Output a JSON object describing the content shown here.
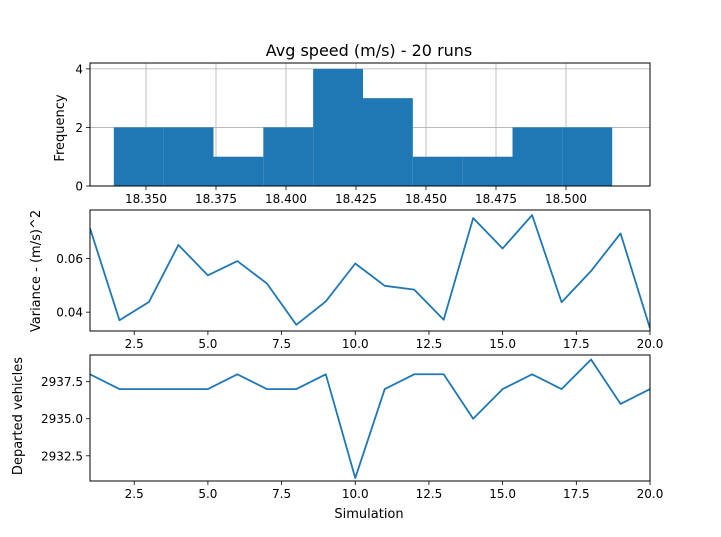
{
  "colors": {
    "series": "#1f77b4",
    "grid": "#b0b0b0",
    "axis": "#000000"
  },
  "chart_data": [
    {
      "type": "bar",
      "title": "Avg speed (m/s) - 20 runs",
      "xlabel": "",
      "ylabel": "Frequency",
      "grid": true,
      "xlim": [
        18.33,
        18.53
      ],
      "ylim": [
        0,
        4.2
      ],
      "bins": [
        {
          "start": 18.3385,
          "end": 18.3563,
          "count": 2
        },
        {
          "start": 18.3563,
          "end": 18.3741,
          "count": 2
        },
        {
          "start": 18.3741,
          "end": 18.3919,
          "count": 1
        },
        {
          "start": 18.3919,
          "end": 18.4097,
          "count": 2
        },
        {
          "start": 18.4097,
          "end": 18.4275,
          "count": 4
        },
        {
          "start": 18.4275,
          "end": 18.4453,
          "count": 3
        },
        {
          "start": 18.4453,
          "end": 18.4631,
          "count": 1
        },
        {
          "start": 18.4631,
          "end": 18.4809,
          "count": 1
        },
        {
          "start": 18.4809,
          "end": 18.4987,
          "count": 2
        },
        {
          "start": 18.4987,
          "end": 18.5165,
          "count": 2
        }
      ],
      "xticks": [
        "18.350",
        "18.375",
        "18.400",
        "18.425",
        "18.450",
        "18.475",
        "18.500"
      ],
      "yticks": [
        "0",
        "2",
        "4"
      ]
    },
    {
      "type": "line",
      "title": "",
      "xlabel": "",
      "ylabel": "Variance - (m/s)^2",
      "grid": false,
      "xlim": [
        1,
        20
      ],
      "ylim": [
        0.033,
        0.078
      ],
      "x": [
        1,
        2,
        3,
        4,
        5,
        6,
        7,
        8,
        9,
        10,
        11,
        12,
        13,
        14,
        15,
        16,
        17,
        18,
        19,
        20
      ],
      "values": [
        0.0712,
        0.037,
        0.0438,
        0.065,
        0.0537,
        0.059,
        0.0507,
        0.0353,
        0.044,
        0.0581,
        0.0498,
        0.0484,
        0.0372,
        0.075,
        0.0637,
        0.0761,
        0.0437,
        0.0553,
        0.0693,
        0.034
      ],
      "xticks": [
        "2.5",
        "5.0",
        "7.5",
        "10.0",
        "12.5",
        "15.0",
        "17.5",
        "20.0"
      ],
      "yticks": [
        "0.04",
        "0.06"
      ]
    },
    {
      "type": "line",
      "title": "",
      "xlabel": "Simulation",
      "ylabel": "Departed vehicles",
      "grid": false,
      "xlim": [
        1,
        20
      ],
      "ylim": [
        2930.8,
        2939.3
      ],
      "x": [
        1,
        2,
        3,
        4,
        5,
        6,
        7,
        8,
        9,
        10,
        11,
        12,
        13,
        14,
        15,
        16,
        17,
        18,
        19,
        20
      ],
      "values": [
        2938,
        2937,
        2937,
        2937,
        2937,
        2938,
        2937,
        2937,
        2938,
        2931,
        2937,
        2938,
        2938,
        2935,
        2937,
        2938,
        2937,
        2939,
        2936,
        2937
      ],
      "xticks": [
        "2.5",
        "5.0",
        "7.5",
        "10.0",
        "12.5",
        "15.0",
        "17.5",
        "20.0"
      ],
      "yticks": [
        "2932.5",
        "2935.0",
        "2937.5"
      ]
    }
  ]
}
